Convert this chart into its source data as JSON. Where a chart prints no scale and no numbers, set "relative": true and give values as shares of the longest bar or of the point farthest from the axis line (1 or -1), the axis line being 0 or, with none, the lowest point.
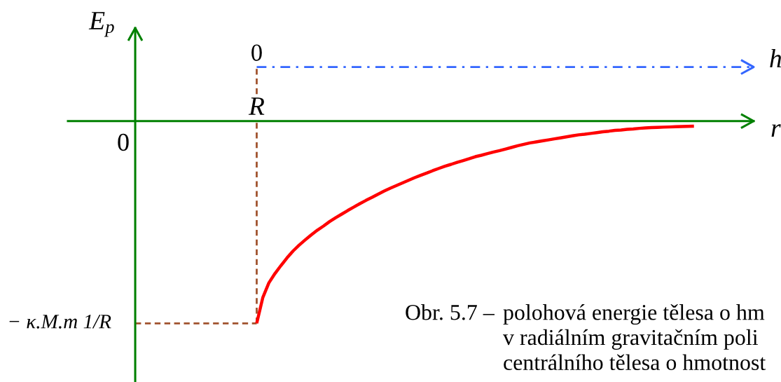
{
  "chart_data": {
    "type": "line",
    "relative": true,
    "xlabel": "r",
    "x2label": "h",
    "annotations": [
      "E$_{p}$",
      "0",
      "R",
      "0",
      "Obr. 5.7 –",
      "polohová energie tělesa o hm\nv radiálním gravitačním poli\ncentrálního tělesa o hmotnost"
    ],
    "categories": [
      null,
      null,
      null,
      null,
      null,
      null,
      null,
      null,
      null,
      null,
      null,
      null,
      null,
      null,
      null,
      null,
      null,
      null,
      null,
      null,
      null,
      null,
      null,
      null,
      null,
      null,
      null,
      null,
      null,
      null,
      null,
      null,
      null,
      null,
      null,
      null,
      null,
      null,
      null,
      null,
      null,
      null,
      null,
      null,
      null,
      null,
      null,
      null,
      null,
      null,
      null,
      null,
      null,
      null,
      null,
      null,
      null,
      null,
      null,
      null,
      null,
      null,
      null,
      null,
      null,
      null,
      null,
      null,
      null,
      null,
      null,
      null,
      null
    ],
    "series": [
      {
        "color": "#ff0000",
        "values": [
          -1,
          -0.873,
          -0.8,
          -0.754,
          -0.714,
          -0.676,
          -0.642,
          -0.613,
          -0.587,
          -0.562,
          -0.539,
          -0.519,
          -0.497,
          -0.478,
          -0.46,
          -0.442,
          -0.425,
          -0.408,
          -0.392,
          -0.377,
          -0.361,
          -0.346,
          -0.332,
          -0.319,
          -0.306,
          -0.293,
          -0.28,
          -0.268,
          -0.257,
          -0.245,
          -0.234,
          -0.223,
          -0.214,
          -0.204,
          -0.195,
          -0.186,
          -0.176,
          -0.169,
          -0.161,
          -0.153,
          -0.146,
          -0.138,
          -0.13,
          -0.122,
          -0.115,
          -0.108,
          -0.103,
          -0.098,
          -0.093,
          -0.088,
          -0.083,
          -0.078,
          -0.073,
          -0.068,
          -0.065,
          -0.061,
          -0.057,
          -0.053,
          -0.05,
          -0.046,
          -0.044,
          -0.041,
          -0.039,
          -0.036,
          -0.034,
          -0.032,
          -0.031,
          -0.03,
          -0.029,
          -0.028,
          -0.027,
          -0.026,
          -0.025
        ]
      }
    ],
    "ref_lines": [
      {
        "axis": "y",
        "value": -1,
        "label": "− κ.M.m 1/R",
        "color": "#a0522d",
        "line_style": "dashed"
      }
    ]
  }
}
